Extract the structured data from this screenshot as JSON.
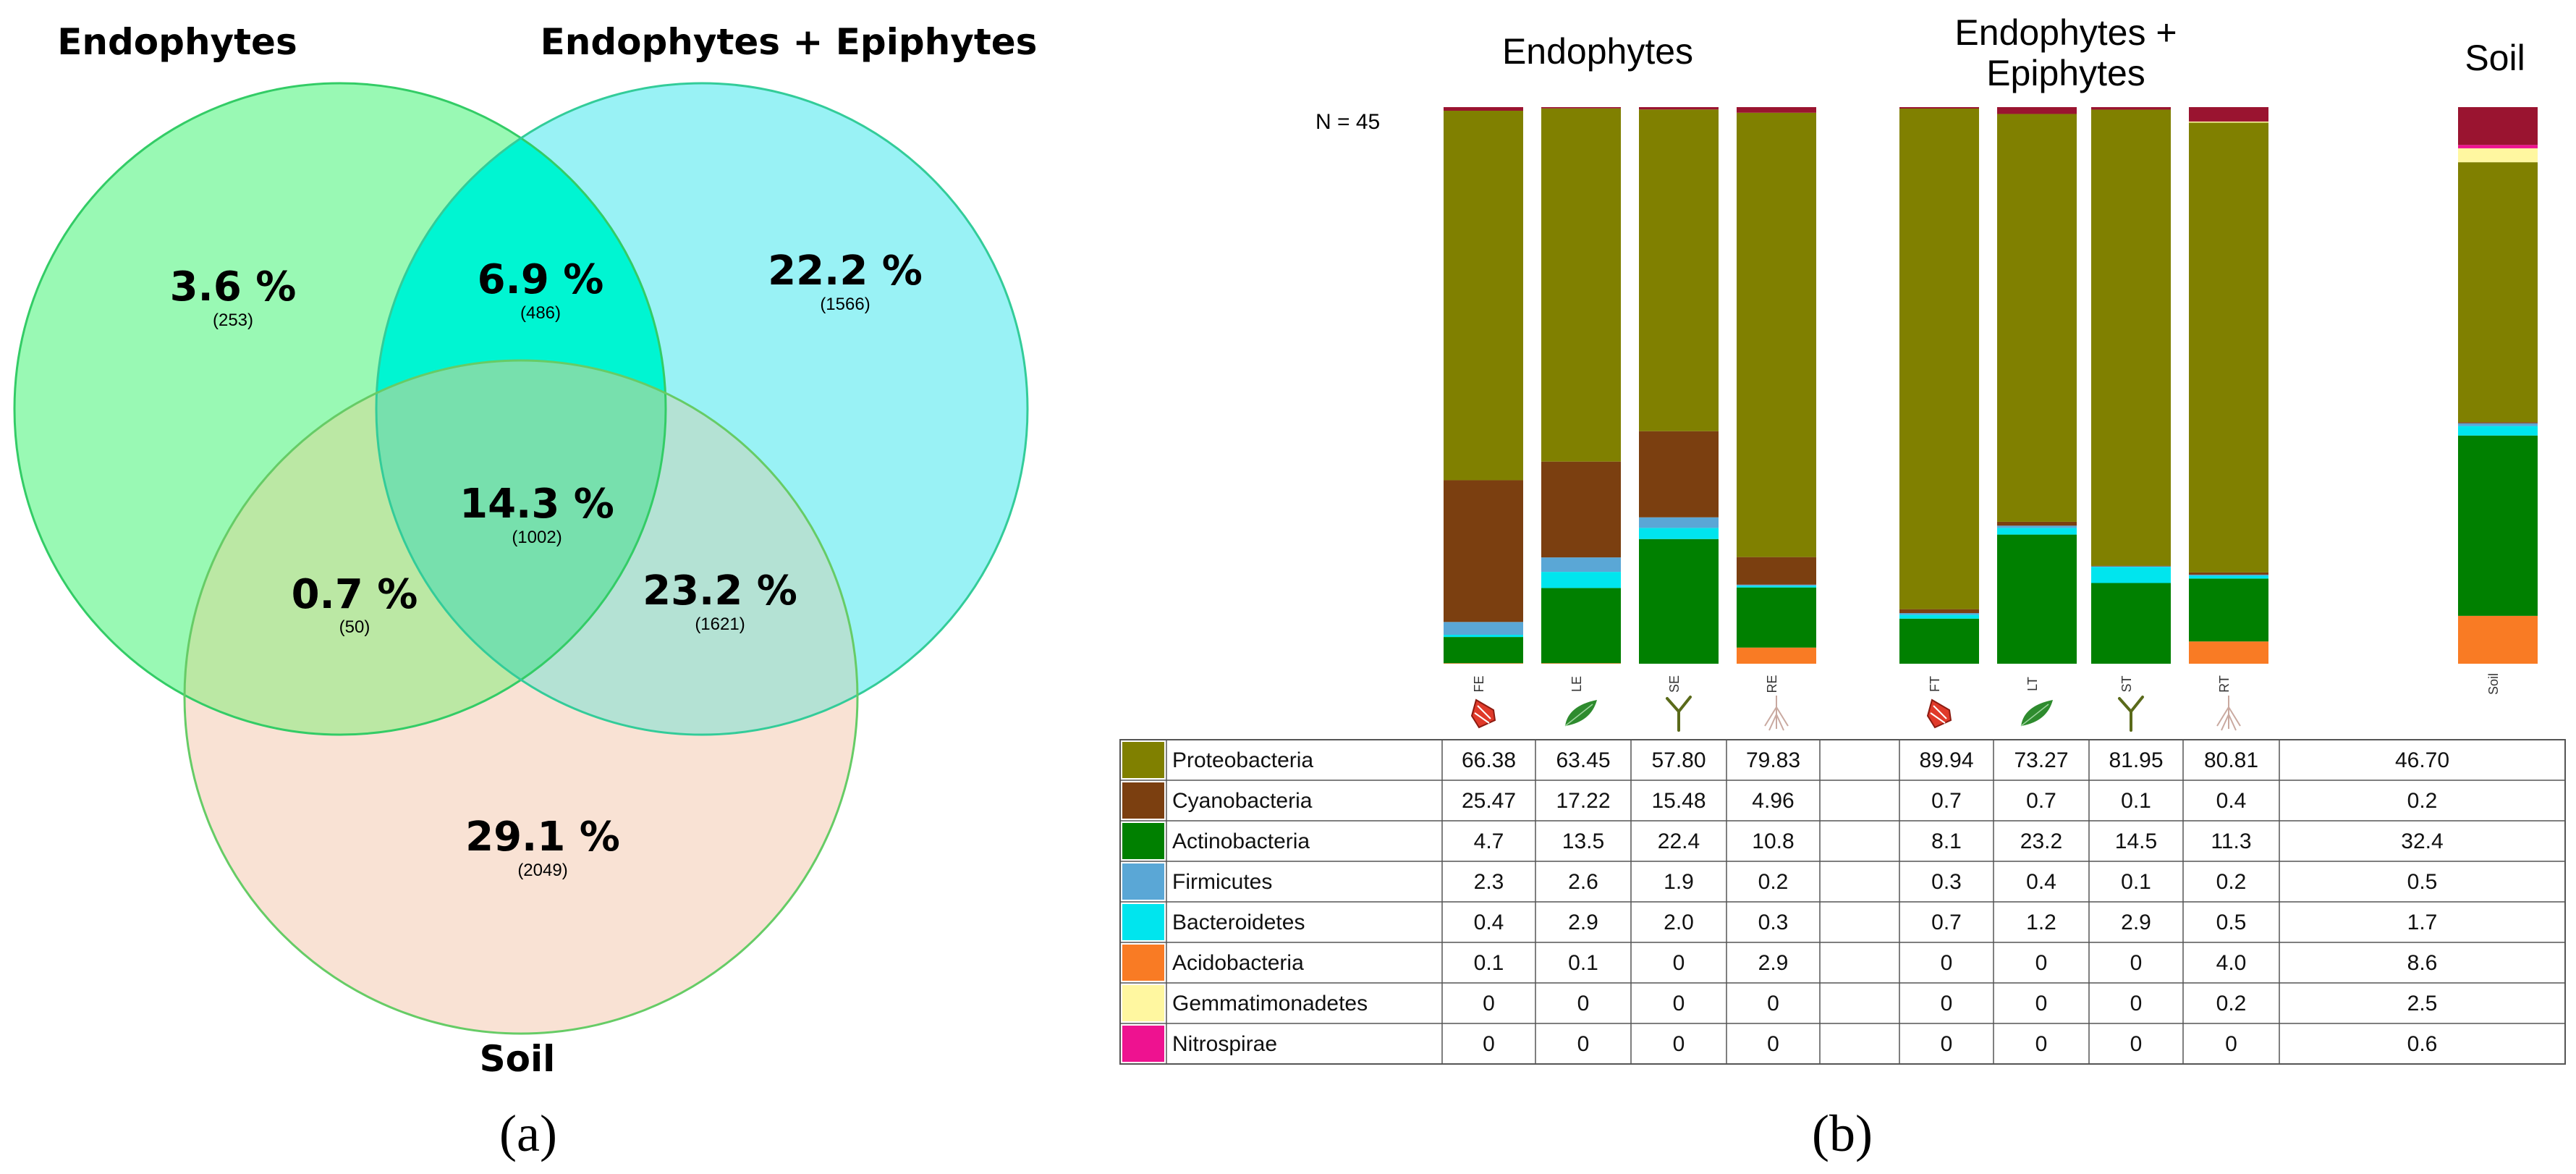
{
  "venn": {
    "sets": [
      {
        "name": "Endophytes",
        "color": "#99f9b4",
        "stroke": "#33cc66"
      },
      {
        "name": "Endophytes + Epiphytes",
        "color": "#99f2f5",
        "stroke": "#33cc99"
      },
      {
        "name": "Soil",
        "color": "#f9e2d4",
        "stroke": "#66cc66"
      }
    ],
    "regions": [
      {
        "id": "endophytes-only",
        "percent": "3.6 %",
        "count": "(253)",
        "color": "#99f9b4"
      },
      {
        "id": "epiphytes-only",
        "percent": "22.2 %",
        "count": "(1566)",
        "color": "#99f2f5"
      },
      {
        "id": "endo-epi",
        "percent": "6.9 %",
        "count": "(486)",
        "color": "#00f5d2"
      },
      {
        "id": "all-three",
        "percent": "14.3 %",
        "count": "(1002)",
        "color": "#77e0ad"
      },
      {
        "id": "endo-soil",
        "percent": "0.7 %",
        "count": "(50)",
        "color": "#bbe8a4"
      },
      {
        "id": "epi-soil",
        "percent": "23.2 %",
        "count": "(1621)",
        "color": "#b4e2d4"
      },
      {
        "id": "soil-only",
        "percent": "29.1 %",
        "count": "(2049)",
        "color": "#f9e2d4"
      }
    ]
  },
  "panel_labels": {
    "a": "(a)",
    "b": "(b)"
  },
  "chart_data": {
    "type": "bar",
    "stacked": true,
    "n_label": "N = 45",
    "groups": [
      {
        "title": "Endophytes",
        "samples": [
          "FE",
          "LE",
          "SE",
          "RE"
        ]
      },
      {
        "title": "Endophytes + Epiphytes",
        "samples": [
          "FT",
          "LT",
          "ST",
          "RT"
        ]
      },
      {
        "title": "Soil",
        "samples": [
          "Soil"
        ]
      }
    ],
    "categories": [
      "FE",
      "LE",
      "SE",
      "RE",
      "FT",
      "LT",
      "ST",
      "RT",
      "Soil"
    ],
    "ylim": [
      0,
      100
    ],
    "series": [
      {
        "name": "Proteobacteria",
        "color": "#808000",
        "display": [
          "66.38",
          "63.45",
          "57.80",
          "79.83",
          "89.94",
          "73.27",
          "81.95",
          "80.81",
          "46.70"
        ],
        "values": [
          66.38,
          63.45,
          57.8,
          79.83,
          89.94,
          73.27,
          81.95,
          80.81,
          46.7
        ]
      },
      {
        "name": "Cyanobacteria",
        "color": "#7b3f10",
        "display": [
          "25.47",
          "17.22",
          "15.48",
          "4.96",
          "0.7",
          "0.7",
          "0.1",
          "0.4",
          "0.2"
        ],
        "values": [
          25.47,
          17.22,
          15.48,
          4.96,
          0.7,
          0.7,
          0.1,
          0.4,
          0.2
        ]
      },
      {
        "name": "Actinobacteria",
        "color": "#008000",
        "display": [
          "4.7",
          "13.5",
          "22.4",
          "10.8",
          "8.1",
          "23.2",
          "14.5",
          "11.3",
          "32.4"
        ],
        "values": [
          4.7,
          13.5,
          22.4,
          10.8,
          8.1,
          23.2,
          14.5,
          11.3,
          32.4
        ]
      },
      {
        "name": "Firmicutes",
        "color": "#5aa7d6",
        "display": [
          "2.3",
          "2.6",
          "1.9",
          "0.2",
          "0.3",
          "0.4",
          "0.1",
          "0.2",
          "0.5"
        ],
        "values": [
          2.3,
          2.6,
          1.9,
          0.2,
          0.3,
          0.4,
          0.1,
          0.2,
          0.5
        ]
      },
      {
        "name": "Bacteroidetes",
        "color": "#00e5ee",
        "display": [
          "0.4",
          "2.9",
          "2.0",
          "0.3",
          "0.7",
          "1.2",
          "2.9",
          "0.5",
          "1.7"
        ],
        "values": [
          0.4,
          2.9,
          2.0,
          0.3,
          0.7,
          1.2,
          2.9,
          0.5,
          1.7
        ]
      },
      {
        "name": "Acidobacteria",
        "color": "#f97b24",
        "display": [
          "0.1",
          "0.1",
          "0",
          "2.9",
          "0",
          "0",
          "0",
          "4.0",
          "8.6"
        ],
        "values": [
          0.1,
          0.1,
          0,
          2.9,
          0,
          0,
          0,
          4.0,
          8.6
        ]
      },
      {
        "name": "Gemmatimonadetes",
        "color": "#fff7a0",
        "display": [
          "0",
          "0",
          "0",
          "0",
          "0",
          "0",
          "0",
          "0.2",
          "2.5"
        ],
        "values": [
          0,
          0,
          0,
          0,
          0,
          0,
          0,
          0.2,
          2.5
        ]
      },
      {
        "name": "Nitrospirae",
        "color": "#ee1290",
        "display": [
          "0",
          "0",
          "0",
          "0",
          "0",
          "0",
          "0",
          "0",
          "0.6"
        ],
        "values": [
          0,
          0,
          0,
          0,
          0,
          0,
          0,
          0,
          0.6
        ]
      }
    ],
    "other_color": "#9a1430",
    "sample_icons": [
      "flower-icon",
      "leaf-icon",
      "stem-icon",
      "root-icon",
      "flower-icon",
      "leaf-icon",
      "stem-icon",
      "root-icon",
      ""
    ]
  }
}
